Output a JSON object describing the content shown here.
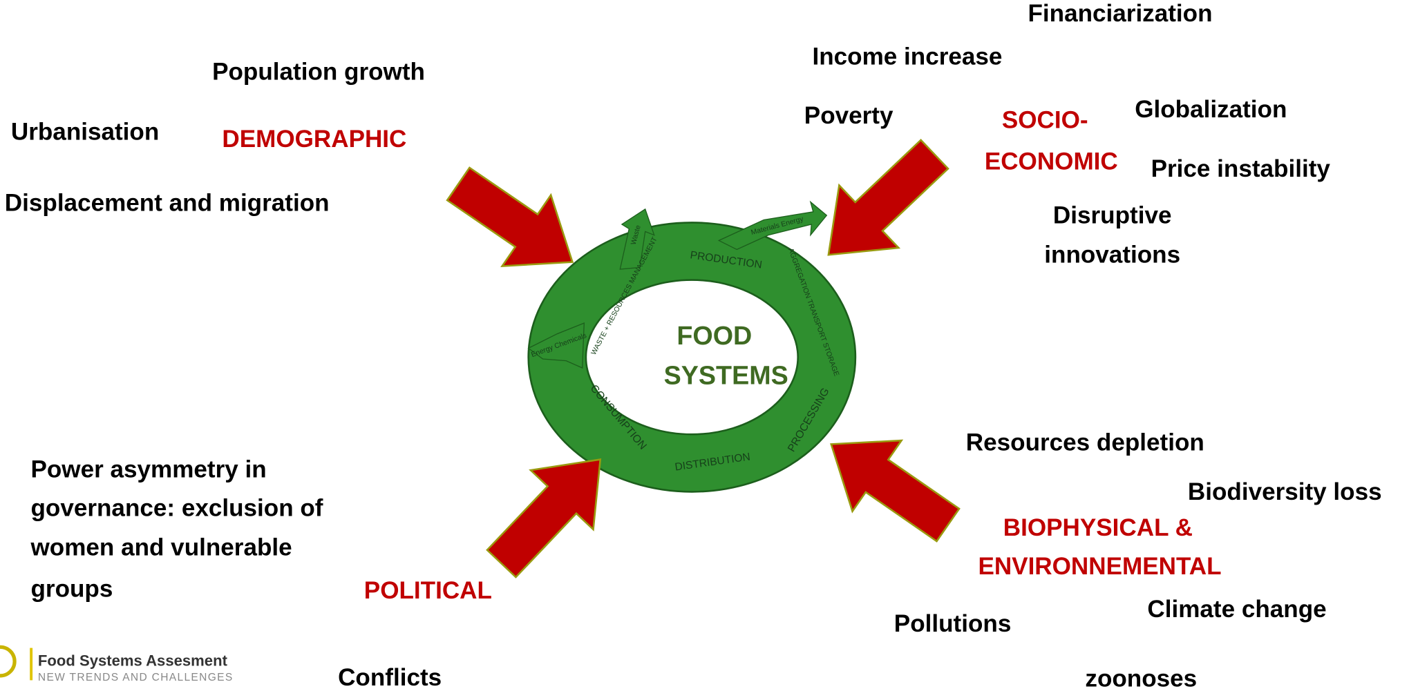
{
  "center": {
    "lines": [
      "FOOD",
      "SYSTEMS"
    ]
  },
  "cycle": {
    "stages": [
      "PRODUCTION",
      "AGGREGATION TRANSPORT STORAGE",
      "PROCESSING",
      "DISTRIBUTION",
      "CONSUMPTION",
      "WASTE + RESOURCES MANAGEMENT"
    ],
    "flows": [
      "Waste",
      "Materials Energy",
      "Energy Chemicals"
    ]
  },
  "demographic": {
    "label": "DEMOGRAPHIC",
    "items": [
      "Population growth",
      "Urbanisation",
      "Displacement and migration"
    ]
  },
  "socio_economic": {
    "label": [
      "SOCIO-",
      "ECONOMIC"
    ],
    "items": [
      "Financiarization",
      "Income increase",
      "Poverty",
      "Globalization",
      "Price instability"
    ],
    "innovations": [
      "Disruptive",
      "innovations"
    ]
  },
  "political": {
    "label": "POLITICAL",
    "governance": [
      "Power asymmetry in",
      "governance: exclusion of",
      "women and vulnerable",
      "groups"
    ],
    "items": [
      "Conflicts"
    ]
  },
  "biophysical": {
    "label": [
      "BIOPHYSICAL &",
      "ENVIRONNEMENTAL"
    ],
    "items": [
      "Resources depletion",
      "Biodiversity loss",
      "Climate change",
      "Pollutions",
      "zoonoses"
    ]
  },
  "logo": {
    "title": "Food Systems Assesment",
    "subtitle": "NEW TRENDS AND CHALLENGES"
  }
}
